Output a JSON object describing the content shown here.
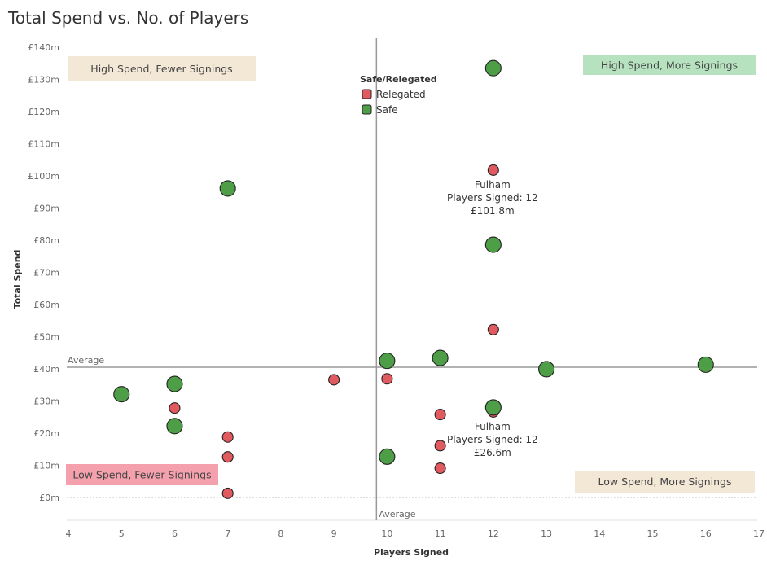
{
  "chart_data": {
    "type": "scatter",
    "title": "Total Spend vs. No. of Players",
    "xlabel": "Players Signed",
    "ylabel": "Total Spend",
    "xlim": [
      4,
      17
    ],
    "ylim": [
      0,
      140
    ],
    "x_ticks": [
      "4",
      "5",
      "6",
      "7",
      "8",
      "9",
      "10",
      "11",
      "12",
      "13",
      "14",
      "15",
      "16",
      "17"
    ],
    "x_tick_values": [
      4,
      5,
      6,
      7,
      8,
      9,
      10,
      11,
      12,
      13,
      14,
      15,
      16,
      17
    ],
    "y_ticks": [
      "£0m",
      "£10m",
      "£20m",
      "£30m",
      "£40m",
      "£50m",
      "£60m",
      "£70m",
      "£80m",
      "£90m",
      "£100m",
      "£110m",
      "£120m",
      "£130m",
      "£140m"
    ],
    "y_tick_values": [
      0,
      10,
      20,
      30,
      40,
      50,
      60,
      70,
      80,
      90,
      100,
      110,
      120,
      130,
      140
    ],
    "average_x": 9.8,
    "average_y": 40.5,
    "average_label": "Average",
    "legend": {
      "title": "Safe/Relegated",
      "items": [
        {
          "label": "Relegated",
          "color": "#e05a5f"
        },
        {
          "label": "Safe",
          "color": "#4d9e46"
        }
      ],
      "placement": "top-center"
    },
    "quadrants": [
      {
        "label": "High Spend, Fewer Signings",
        "color": "#f3e7d6",
        "position": "top-left"
      },
      {
        "label": "High Spend, More Signings",
        "color": "#b7e2c0",
        "position": "top-right"
      },
      {
        "label": "Low Spend, Fewer Signings",
        "color": "#f4a1ad",
        "position": "bottom-left"
      },
      {
        "label": "Low Spend, More Signings",
        "color": "#f3e7d6",
        "position": "bottom-right"
      }
    ],
    "series": [
      {
        "name": "Relegated",
        "color": "#e05a5f",
        "points": [
          {
            "x": 6,
            "y": 27.8
          },
          {
            "x": 7,
            "y": 18.8
          },
          {
            "x": 7,
            "y": 12.6
          },
          {
            "x": 7,
            "y": 1.3
          },
          {
            "x": 9,
            "y": 36.6
          },
          {
            "x": 10,
            "y": 36.9
          },
          {
            "x": 11,
            "y": 25.8
          },
          {
            "x": 11,
            "y": 16.1
          },
          {
            "x": 11,
            "y": 9.1
          },
          {
            "x": 12,
            "y": 101.8
          },
          {
            "x": 12,
            "y": 52.2
          },
          {
            "x": 12,
            "y": 26.6
          }
        ]
      },
      {
        "name": "Safe",
        "color": "#4d9e46",
        "points": [
          {
            "x": 5,
            "y": 32.1
          },
          {
            "x": 6,
            "y": 35.3
          },
          {
            "x": 6,
            "y": 22.2
          },
          {
            "x": 7,
            "y": 96.1
          },
          {
            "x": 10,
            "y": 42.5
          },
          {
            "x": 10,
            "y": 12.7
          },
          {
            "x": 11,
            "y": 43.4
          },
          {
            "x": 12,
            "y": 133.5
          },
          {
            "x": 12,
            "y": 78.6
          },
          {
            "x": 12,
            "y": 28.0
          },
          {
            "x": 13,
            "y": 39.9
          },
          {
            "x": 16,
            "y": 41.3
          }
        ]
      }
    ],
    "annotations": [
      {
        "x": 12,
        "y": 101.8,
        "lines": [
          "Fulham",
          "Players Signed: 12",
          "£101.8m"
        ]
      },
      {
        "x": 12,
        "y": 26.6,
        "lines": [
          "Fulham",
          "Players Signed: 12",
          "£26.6m"
        ]
      }
    ]
  }
}
